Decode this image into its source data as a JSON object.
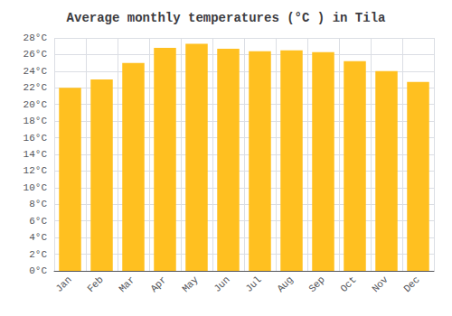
{
  "chart_data": {
    "type": "bar",
    "title": "Average monthly temperatures (°C ) in Tila",
    "categories": [
      "Jan",
      "Feb",
      "Mar",
      "Apr",
      "May",
      "Jun",
      "Jul",
      "Aug",
      "Sep",
      "Oct",
      "Nov",
      "Dec"
    ],
    "values": [
      22.0,
      23.0,
      25.0,
      26.8,
      27.3,
      26.7,
      26.4,
      26.5,
      26.3,
      25.2,
      24.0,
      22.7
    ],
    "color": "#FFC020",
    "ylim": [
      0,
      28
    ],
    "yticks": [
      {
        "value": 0,
        "label": "0°C"
      },
      {
        "value": 2,
        "label": "2°C"
      },
      {
        "value": 4,
        "label": "4°C"
      },
      {
        "value": 6,
        "label": "6°C"
      },
      {
        "value": 8,
        "label": "8°C"
      },
      {
        "value": 10,
        "label": "10°C"
      },
      {
        "value": 12,
        "label": "12°C"
      },
      {
        "value": 14,
        "label": "14°C"
      },
      {
        "value": 16,
        "label": "16°C"
      },
      {
        "value": 18,
        "label": "18°C"
      },
      {
        "value": 20,
        "label": "20°C"
      },
      {
        "value": 22,
        "label": "22°C"
      },
      {
        "value": 24,
        "label": "24°C"
      },
      {
        "value": 26,
        "label": "26°C"
      },
      {
        "value": 28,
        "label": "28°C"
      }
    ],
    "grid": true
  }
}
